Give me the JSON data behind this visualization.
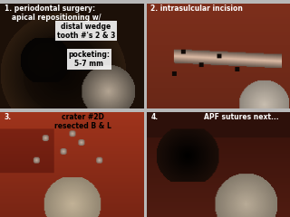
{
  "figsize": [
    3.2,
    2.4
  ],
  "dpi": 100,
  "bg_color": "#b8b8b8",
  "panel_border": "#888888",
  "panels": {
    "p1": {
      "text1": "1. periodontal surgery:\n   apical repositioning w/",
      "text1_color": "white",
      "text1_fontsize": 5.5,
      "text2": "distal wedge\ntooth #'s 2 & 3",
      "text2_fontsize": 5.5,
      "text3": "pocketing:\n5-7 mm",
      "text3_fontsize": 5.5,
      "base_color": [
        30,
        18,
        10
      ],
      "mid_color": [
        55,
        30,
        15
      ],
      "dark_color": [
        12,
        8,
        5
      ],
      "shine_color": [
        160,
        145,
        120
      ]
    },
    "p2": {
      "text1": "2. intrasulcular incision",
      "text1_color": "white",
      "text1_fontsize": 5.5,
      "base_color": [
        80,
        30,
        20
      ],
      "mid_color": [
        110,
        45,
        30
      ],
      "bright_color": [
        150,
        60,
        40
      ],
      "shine_color": [
        200,
        185,
        160
      ]
    },
    "p3": {
      "text1": "3.",
      "text1_color": "white",
      "text1_fontsize": 5.5,
      "text2": "crater #2D\nresected B & L",
      "text2_fontsize": 5.5,
      "base_color": [
        140,
        45,
        25
      ],
      "mid_color": [
        180,
        65,
        35
      ],
      "shine_color": [
        200,
        185,
        150
      ]
    },
    "p4": {
      "text1": "4.",
      "text1_color": "white",
      "text1_fontsize": 5.5,
      "text2": "APF sutures next...",
      "text2_color": "white",
      "text2_fontsize": 5.5,
      "base_color": [
        50,
        18,
        12
      ],
      "mid_color": [
        90,
        35,
        20
      ],
      "shine_color": [
        185,
        170,
        140
      ]
    }
  }
}
